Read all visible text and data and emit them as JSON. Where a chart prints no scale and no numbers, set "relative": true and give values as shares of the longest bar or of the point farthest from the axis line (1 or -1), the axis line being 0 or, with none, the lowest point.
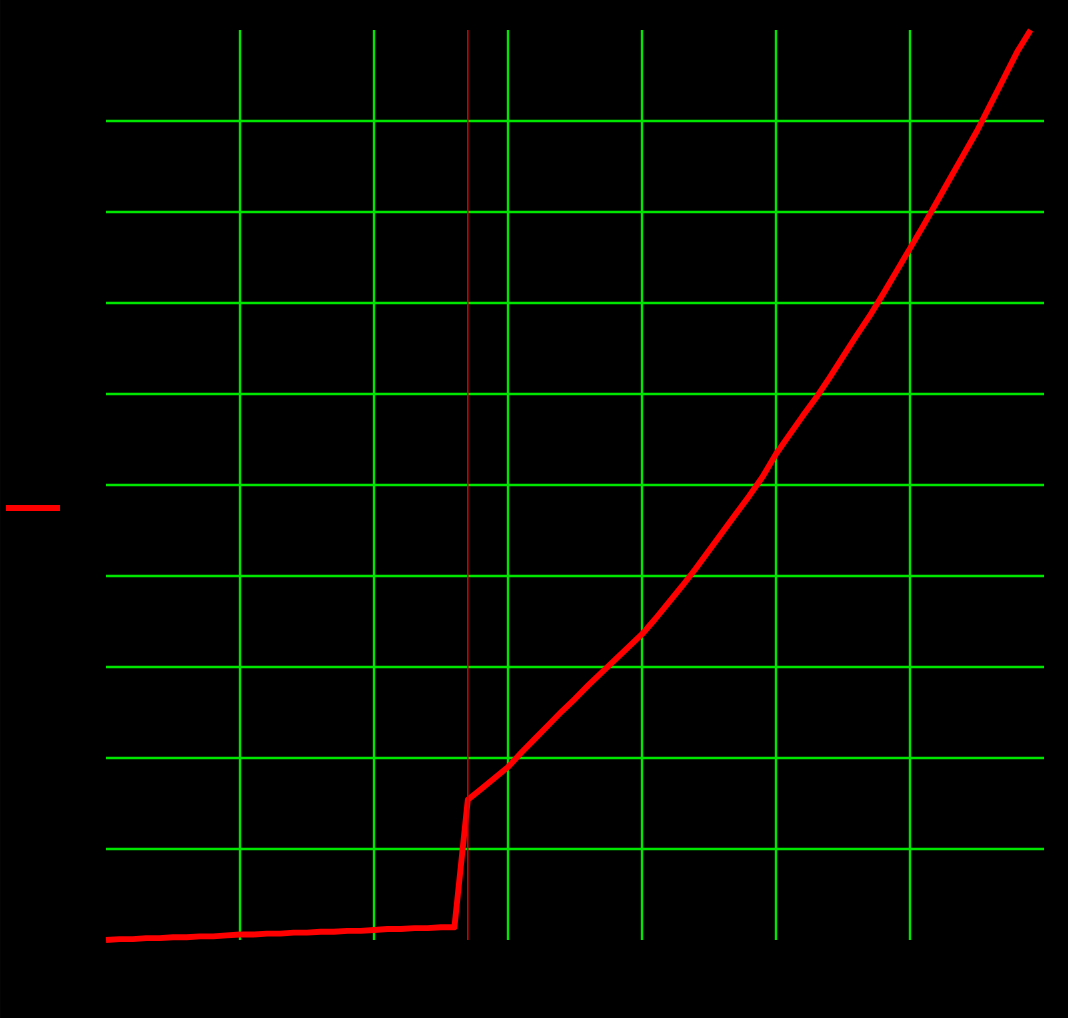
{
  "chart_data": {
    "type": "line",
    "relative": true,
    "grid": true,
    "marker": "none",
    "line_style": "solid",
    "categories": [
      null,
      null,
      null,
      null,
      null,
      null,
      null,
      null,
      null,
      null,
      null,
      null,
      null,
      null,
      null,
      null,
      null,
      null,
      null,
      null,
      null,
      null,
      null,
      null,
      null,
      null,
      null,
      null,
      null,
      null,
      null,
      null,
      null,
      null,
      null,
      null,
      null,
      null,
      null,
      null,
      null,
      null,
      null,
      null,
      null,
      null,
      null,
      null,
      null,
      null,
      null,
      null,
      null,
      null,
      null,
      null,
      null,
      null,
      null,
      null,
      null,
      null,
      null,
      null,
      null,
      null,
      null,
      null,
      null,
      null
    ],
    "series": [
      {
        "color": "#ff0000",
        "values": [
          0,
          0.001,
          0.001,
          0.002,
          0.002,
          0.003,
          0.003,
          0.004,
          0.004,
          0.005,
          0.006,
          0.006,
          0.007,
          0.007,
          0.008,
          0.008,
          0.009,
          0.009,
          0.01,
          0.01,
          0.011,
          0.012,
          0.012,
          0.013,
          0.013,
          0.014,
          0.014,
          0.154,
          0.166,
          0.178,
          0.19,
          0.206,
          0.221,
          0.236,
          0.251,
          0.265,
          0.28,
          0.294,
          0.308,
          0.322,
          0.336,
          0.353,
          0.371,
          0.389,
          0.408,
          0.428,
          0.448,
          0.468,
          0.488,
          0.509,
          0.534,
          0.555,
          0.576,
          0.596,
          0.618,
          0.641,
          0.664,
          0.686,
          0.71,
          0.735,
          0.76,
          0.785,
          0.811,
          0.837,
          0.863,
          0.889,
          0.918,
          0.947,
          0.976,
          1.0
        ]
      }
    ]
  }
}
